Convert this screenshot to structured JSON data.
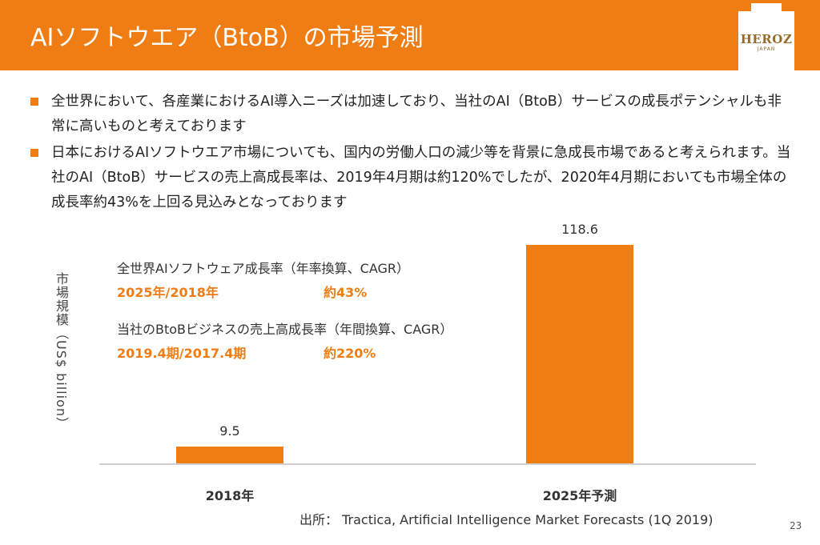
{
  "header": {
    "title": "AIソフトウエア（BtoB）の市場予測",
    "logo_text": "HEROZ",
    "logo_sub": "JAPAN"
  },
  "bullets": [
    "全世界において、各産業におけるAI導入ニーズは加速しており、当社のAI（BtoB）サービスの成長ポテンシャルも非常に高いものと考えております",
    "日本におけるAIソフトウエア市場についても、国内の労働人口の減少等を背景に急成長市場であると考えられます。当社のAI（BtoB）サービスの売上高成長率は、2019年4月期は約120%でしたが、2020年4月期においても市場全体の成長率約43%を上回る見込みとなっております"
  ],
  "notes": {
    "global_title": "全世界AIソフトウェア成長率（年率換算、CAGR）",
    "global_period": "2025年/2018年",
    "global_value": "約43%",
    "company_title": "当社のBtoBビジネスの売上高成長率（年間換算、CAGR）",
    "company_period": "2019.4期/2017.4期",
    "company_value": "約220%"
  },
  "chart_data": {
    "type": "bar",
    "categories": [
      "2018年",
      "2025年予測"
    ],
    "values": [
      9.5,
      118.6
    ],
    "value_labels": [
      "9.5",
      "118.6"
    ],
    "title": "",
    "xlabel": "",
    "ylabel": "市場規模（US$ billion）",
    "ylim": [
      0,
      118.6
    ],
    "grid": false,
    "bar_color": "#f07d14"
  },
  "source": "出所： Tractica, Artificial Intelligence Market Forecasts (1Q 2019)",
  "page_number": "23",
  "colors": {
    "accent": "#f07d14",
    "header_bg": "#f07d14"
  }
}
